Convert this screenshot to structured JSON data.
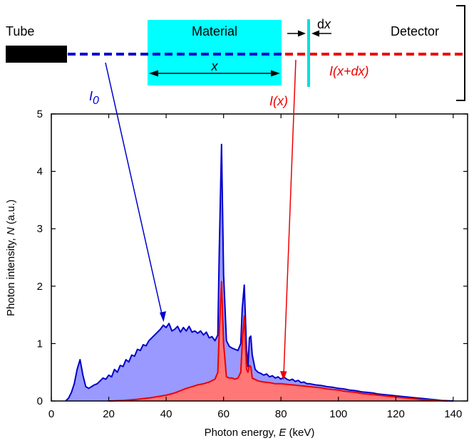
{
  "diagram": {
    "tube_label": "Tube",
    "material_label": "Material",
    "detector_label": "Detector",
    "x_label": "x",
    "dx_label_d": "d",
    "dx_label_x": "x",
    "i0_label": "I",
    "i0_sub": "0",
    "ix_label": "I(x)",
    "ixdx_label": "I(x+dx)",
    "colors": {
      "tube": "#000000",
      "material": "#00ffff",
      "incident_beam": "#0000cc",
      "transmitted_beam": "#ee0000",
      "slice": "#00e0e0"
    }
  },
  "chart_data": {
    "type": "area",
    "xlabel_prefix": "Photon energy, ",
    "xlabel_var": "E",
    "xlabel_unit": " (keV)",
    "ylabel_prefix": "Photon intensity, ",
    "ylabel_var": "N",
    "ylabel_unit": " (a.u.)",
    "xlim": [
      0,
      145
    ],
    "ylim": [
      0,
      5
    ],
    "xticks": [
      0,
      20,
      40,
      60,
      80,
      100,
      120,
      140
    ],
    "yticks": [
      0,
      1,
      2,
      3,
      4,
      5
    ],
    "grid": false,
    "series": [
      {
        "color": "#0000cc",
        "fill": "#9999ff",
        "points": [
          [
            5,
            0
          ],
          [
            6,
            0.05
          ],
          [
            7,
            0.15
          ],
          [
            8,
            0.3
          ],
          [
            9,
            0.55
          ],
          [
            10,
            0.72
          ],
          [
            11,
            0.45
          ],
          [
            12,
            0.25
          ],
          [
            13,
            0.22
          ],
          [
            14,
            0.25
          ],
          [
            15,
            0.28
          ],
          [
            16,
            0.3
          ],
          [
            17,
            0.35
          ],
          [
            18,
            0.4
          ],
          [
            19,
            0.38
          ],
          [
            20,
            0.45
          ],
          [
            21,
            0.42
          ],
          [
            22,
            0.55
          ],
          [
            23,
            0.5
          ],
          [
            24,
            0.62
          ],
          [
            25,
            0.6
          ],
          [
            26,
            0.72
          ],
          [
            27,
            0.68
          ],
          [
            28,
            0.8
          ],
          [
            29,
            0.78
          ],
          [
            30,
            0.9
          ],
          [
            31,
            0.88
          ],
          [
            32,
            0.98
          ],
          [
            33,
            0.96
          ],
          [
            34,
            1.05
          ],
          [
            35,
            1.1
          ],
          [
            36,
            1.15
          ],
          [
            37,
            1.2
          ],
          [
            38,
            1.25
          ],
          [
            39,
            1.32
          ],
          [
            40,
            1.28
          ],
          [
            41,
            1.35
          ],
          [
            42,
            1.22
          ],
          [
            43,
            1.25
          ],
          [
            44,
            1.3
          ],
          [
            45,
            1.2
          ],
          [
            46,
            1.28
          ],
          [
            47,
            1.22
          ],
          [
            48,
            1.3
          ],
          [
            49,
            1.2
          ],
          [
            50,
            1.22
          ],
          [
            51,
            1.18
          ],
          [
            52,
            1.22
          ],
          [
            53,
            1.15
          ],
          [
            54,
            1.2
          ],
          [
            55,
            1.1
          ],
          [
            56,
            1.12
          ],
          [
            57,
            1.05
          ],
          [
            58,
            1.15
          ],
          [
            58.5,
            2.6
          ],
          [
            59.3,
            4.47
          ],
          [
            60,
            2.2
          ],
          [
            61,
            1.05
          ],
          [
            62,
            0.95
          ],
          [
            63,
            0.92
          ],
          [
            64,
            0.9
          ],
          [
            65,
            0.88
          ],
          [
            66,
            1.0
          ],
          [
            66.5,
            1.6
          ],
          [
            67.2,
            2.02
          ],
          [
            68,
            0.9
          ],
          [
            68.5,
            0.6
          ],
          [
            69,
            1.1
          ],
          [
            69.5,
            1.13
          ],
          [
            70,
            0.8
          ],
          [
            71,
            0.55
          ],
          [
            72,
            0.5
          ],
          [
            73,
            0.48
          ],
          [
            74,
            0.45
          ],
          [
            75,
            0.47
          ],
          [
            76,
            0.42
          ],
          [
            77,
            0.44
          ],
          [
            78,
            0.4
          ],
          [
            79,
            0.42
          ],
          [
            80,
            0.38
          ],
          [
            81,
            0.42
          ],
          [
            82,
            0.38
          ],
          [
            83,
            0.36
          ],
          [
            84,
            0.38
          ],
          [
            85,
            0.34
          ],
          [
            86,
            0.36
          ],
          [
            87,
            0.32
          ],
          [
            88,
            0.33
          ],
          [
            89,
            0.3
          ],
          [
            90,
            0.3
          ],
          [
            92,
            0.28
          ],
          [
            94,
            0.27
          ],
          [
            96,
            0.25
          ],
          [
            98,
            0.24
          ],
          [
            100,
            0.22
          ],
          [
            102,
            0.21
          ],
          [
            104,
            0.19
          ],
          [
            106,
            0.18
          ],
          [
            108,
            0.16
          ],
          [
            110,
            0.15
          ],
          [
            112,
            0.14
          ],
          [
            114,
            0.12
          ],
          [
            116,
            0.11
          ],
          [
            118,
            0.1
          ],
          [
            120,
            0.09
          ],
          [
            122,
            0.08
          ],
          [
            124,
            0.07
          ],
          [
            126,
            0.06
          ],
          [
            128,
            0.05
          ],
          [
            130,
            0.04
          ],
          [
            132,
            0.03
          ],
          [
            134,
            0.02
          ],
          [
            136,
            0.01
          ],
          [
            138,
            0.005
          ],
          [
            140,
            0
          ]
        ]
      },
      {
        "color": "#ee0000",
        "fill": "#ff7777",
        "points": [
          [
            20,
            0
          ],
          [
            25,
            0.01
          ],
          [
            30,
            0.03
          ],
          [
            35,
            0.06
          ],
          [
            40,
            0.1
          ],
          [
            43,
            0.14
          ],
          [
            45,
            0.18
          ],
          [
            47,
            0.22
          ],
          [
            49,
            0.25
          ],
          [
            51,
            0.28
          ],
          [
            53,
            0.3
          ],
          [
            55,
            0.33
          ],
          [
            57,
            0.38
          ],
          [
            58,
            0.5
          ],
          [
            58.5,
            1.2
          ],
          [
            59.3,
            2.08
          ],
          [
            60,
            1.0
          ],
          [
            61,
            0.42
          ],
          [
            62,
            0.4
          ],
          [
            63,
            0.4
          ],
          [
            64,
            0.38
          ],
          [
            65,
            0.4
          ],
          [
            66,
            0.5
          ],
          [
            66.5,
            1.0
          ],
          [
            67.2,
            1.48
          ],
          [
            68,
            0.55
          ],
          [
            68.5,
            0.5
          ],
          [
            69,
            0.62
          ],
          [
            69.5,
            0.6
          ],
          [
            70,
            0.4
          ],
          [
            72,
            0.35
          ],
          [
            74,
            0.33
          ],
          [
            76,
            0.32
          ],
          [
            78,
            0.3
          ],
          [
            80,
            0.3
          ],
          [
            82,
            0.29
          ],
          [
            84,
            0.28
          ],
          [
            86,
            0.27
          ],
          [
            88,
            0.26
          ],
          [
            90,
            0.25
          ],
          [
            92,
            0.24
          ],
          [
            94,
            0.23
          ],
          [
            96,
            0.21
          ],
          [
            98,
            0.2
          ],
          [
            100,
            0.19
          ],
          [
            102,
            0.17
          ],
          [
            104,
            0.16
          ],
          [
            106,
            0.15
          ],
          [
            108,
            0.13
          ],
          [
            110,
            0.12
          ],
          [
            112,
            0.11
          ],
          [
            114,
            0.1
          ],
          [
            116,
            0.09
          ],
          [
            118,
            0.08
          ],
          [
            120,
            0.07
          ],
          [
            122,
            0.06
          ],
          [
            124,
            0.05
          ],
          [
            126,
            0.04
          ],
          [
            128,
            0.03
          ],
          [
            130,
            0.02
          ],
          [
            132,
            0.015
          ],
          [
            134,
            0.01
          ],
          [
            136,
            0.005
          ],
          [
            138,
            0
          ]
        ]
      }
    ]
  }
}
